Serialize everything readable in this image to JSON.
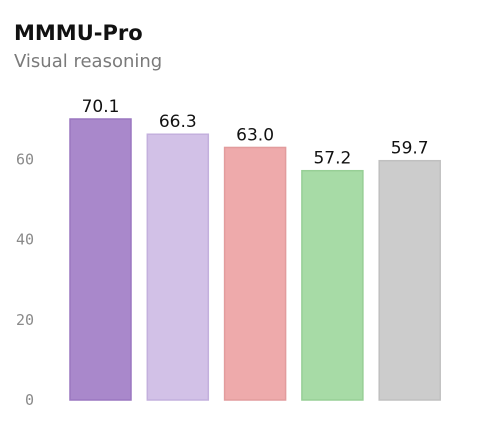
{
  "chart_data": {
    "type": "bar",
    "title": "MMMU-Pro",
    "subtitle": "Visual reasoning",
    "xlabel": "",
    "ylabel": "",
    "ylim": [
      0,
      70.1
    ],
    "yticks": [
      0,
      20,
      40,
      60
    ],
    "grid": false,
    "legend": "none",
    "values": [
      70.1,
      66.3,
      63.0,
      57.2,
      59.7
    ],
    "labels": [
      "70.1",
      "66.3",
      "63.0",
      "57.2",
      "59.7"
    ],
    "colors": [
      {
        "fill": "#a988cb",
        "stroke": "#9a77c0"
      },
      {
        "fill": "#d2c1e7",
        "stroke": "#c3b0dd"
      },
      {
        "fill": "#eeaaab",
        "stroke": "#e29c9d"
      },
      {
        "fill": "#a7dba6",
        "stroke": "#97cf96"
      },
      {
        "fill": "#cccccc",
        "stroke": "#c0c0c0"
      }
    ]
  }
}
